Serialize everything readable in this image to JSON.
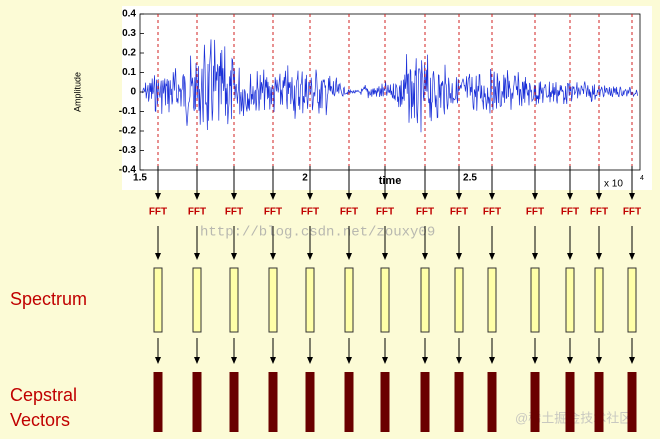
{
  "waveform": {
    "y_axis_label": "Amplitude",
    "x_axis_label": "time",
    "x_multiplier": "x 10",
    "x_multiplier_exp": "4",
    "yticks": [
      "0.4",
      "0.3",
      "0.2",
      "0.1",
      "0",
      "-0.1",
      "-0.2",
      "-0.3",
      "-0.4"
    ],
    "xticks": [
      "1.5",
      "2",
      "2.5"
    ]
  },
  "fft_labels": [
    "FFT",
    "FFT",
    "FFT",
    "FFT",
    "FFT",
    "FFT",
    "FFT",
    "FFT",
    "FFT",
    "FFT",
    "FFT",
    "FFT",
    "FFT",
    "FFT"
  ],
  "row_labels": {
    "spectrum": "Spectrum",
    "cepstral_1": "Cepstral",
    "cepstral_2": "Vectors"
  },
  "watermarks": {
    "url": "http://blog.csdn.net/zouxy09",
    "site": "@稀土掘金技术社区"
  }
}
